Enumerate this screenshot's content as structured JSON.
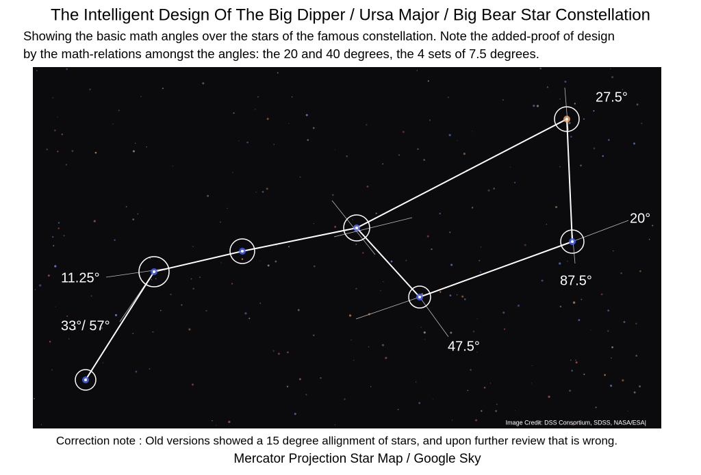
{
  "header": {
    "title": "The Intelligent Design Of The Big Dipper / Ursa Major / Big Bear Star Constellation",
    "subtitle_lines": [
      "Showing the basic math angles over the stars of the famous constellation.  Note the added-proof of design",
      "by the math-relations amongst the angles: the 20 and 40 degrees, the 4 sets of 7.5 degrees."
    ]
  },
  "labels": [
    "27.5°",
    "20°",
    "11.25°",
    "87.5°",
    "33°/ 57°",
    "47.5°"
  ],
  "credit": "Image Credit: DSS Consortium, SDSS, NASA/ESA|",
  "footer": [
    "Correction note : Old versions showed a 15 degree allignment of stars, and upon further review that is wrong.",
    "Mercator Projection Star Map / Google Sky"
  ]
}
